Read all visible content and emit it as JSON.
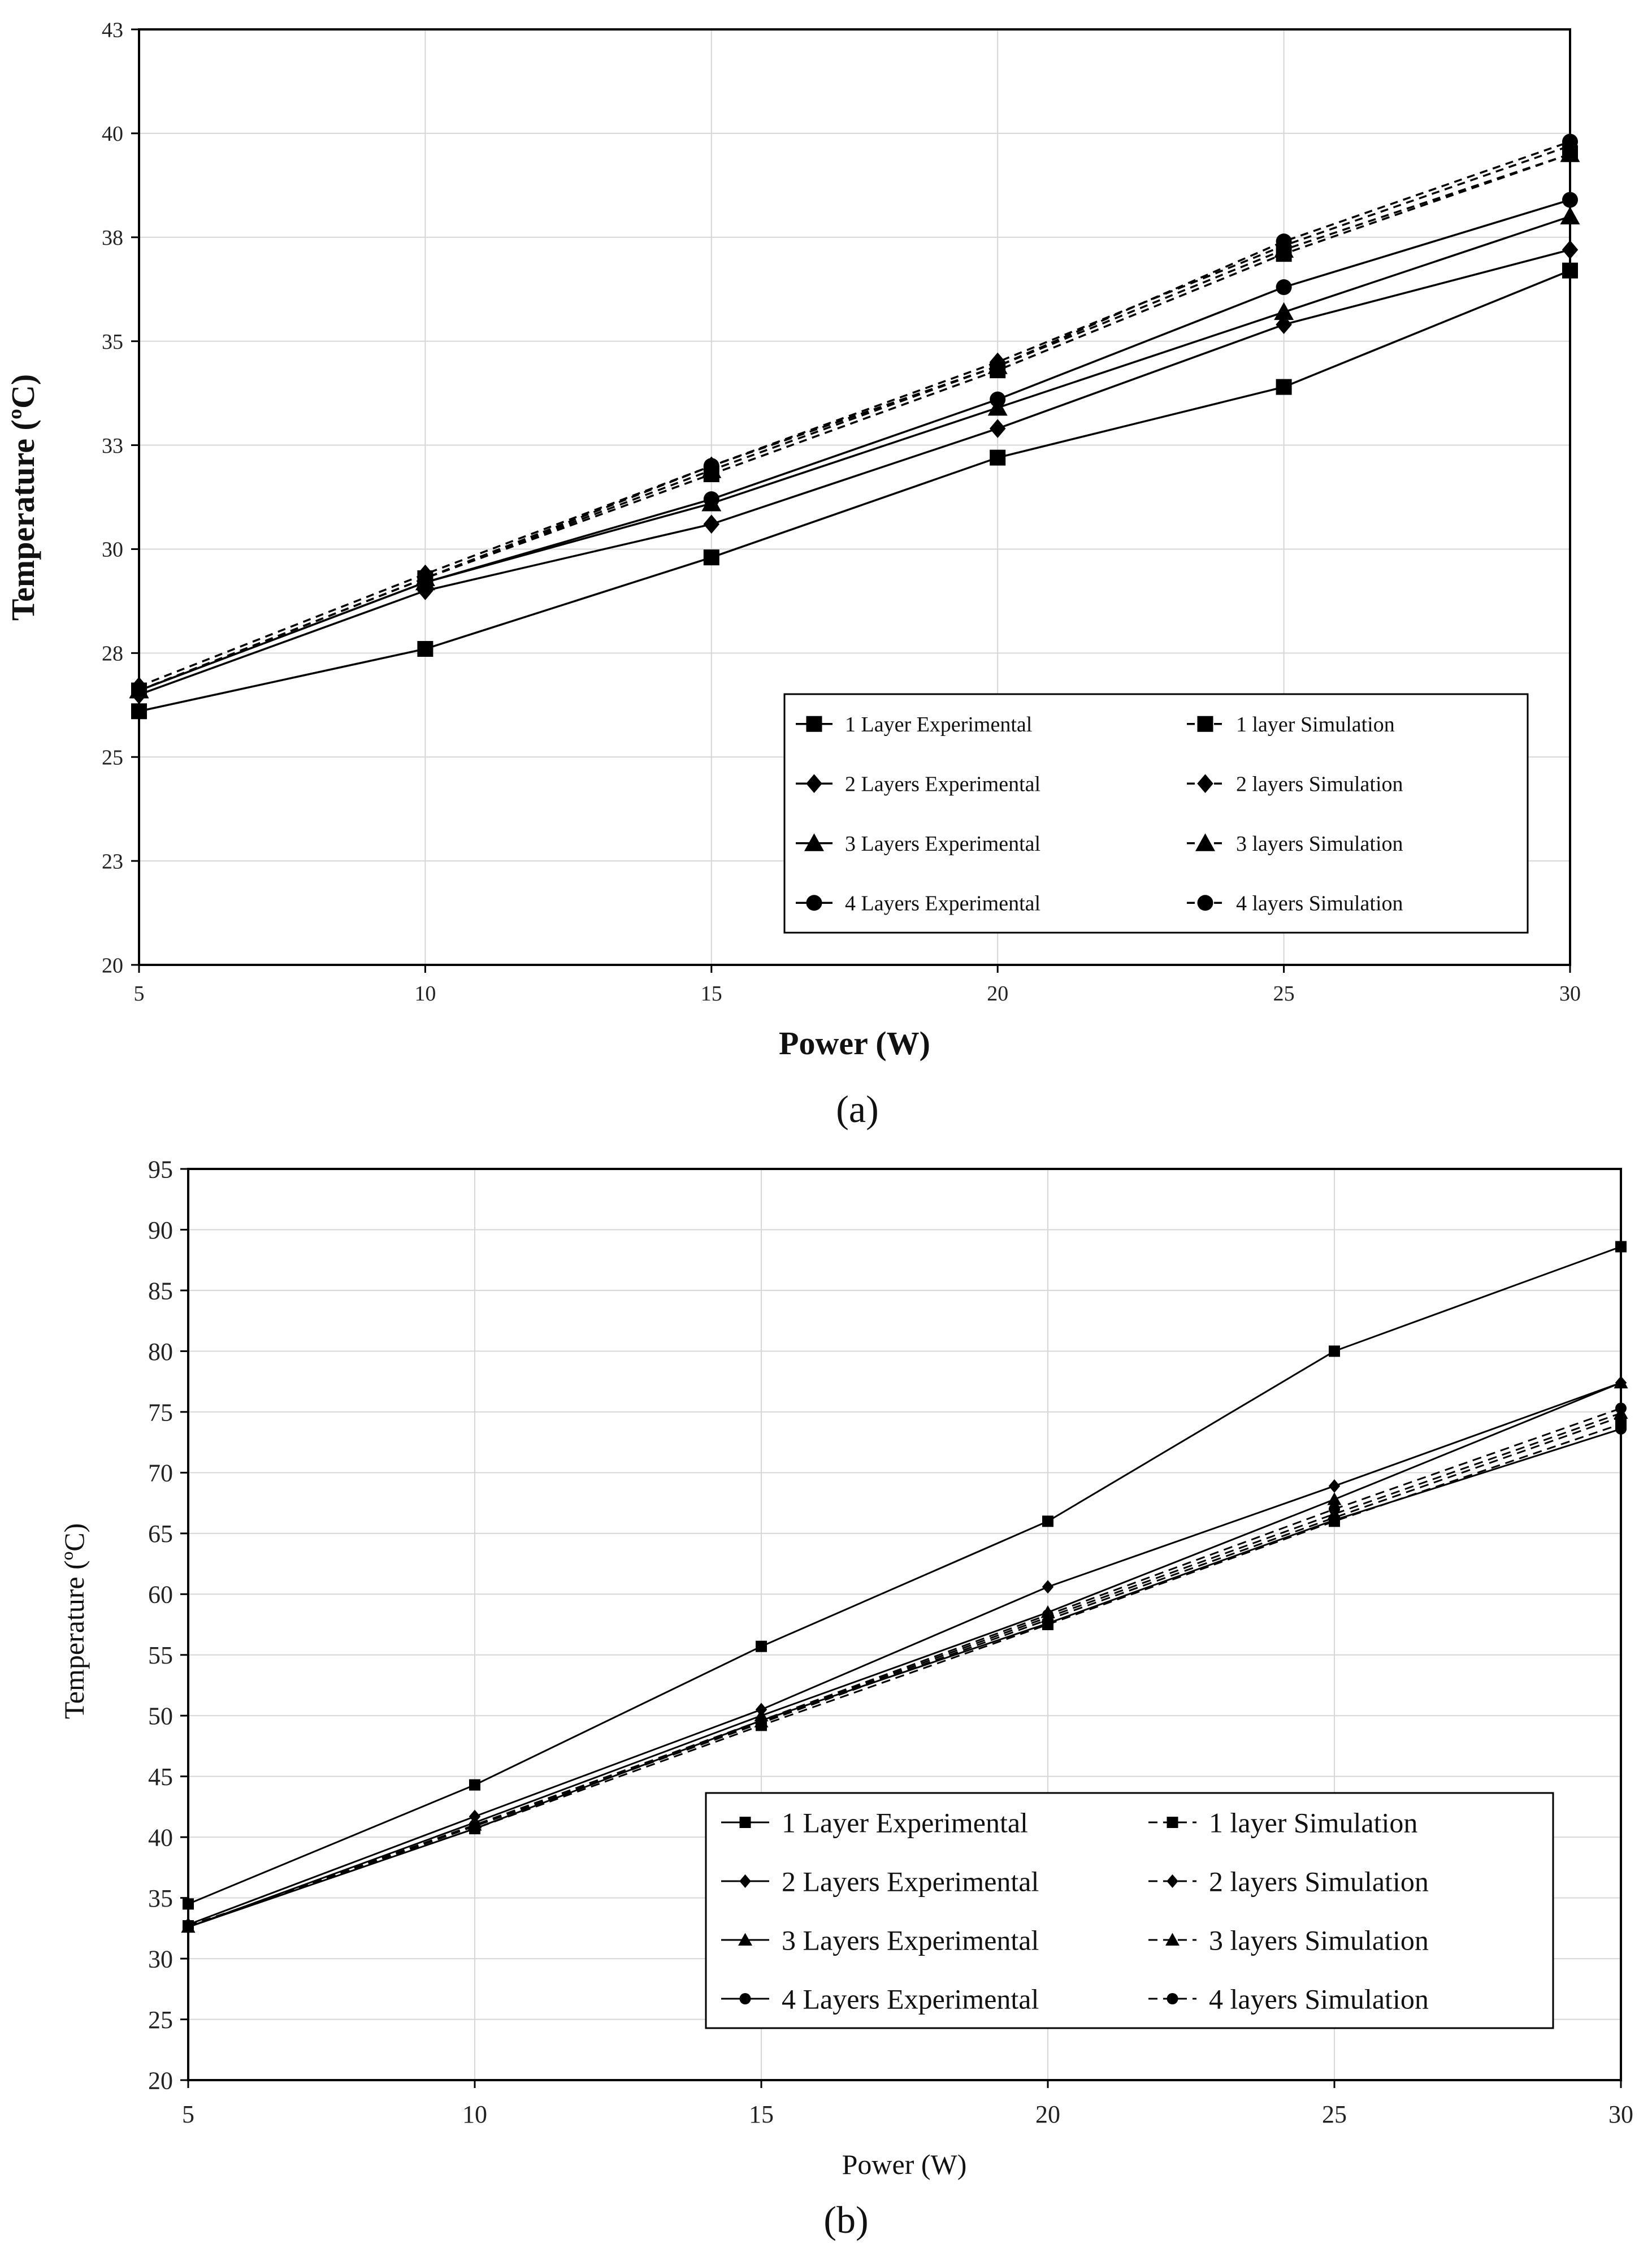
{
  "chart_data": [
    {
      "type": "line",
      "panel_label": "(a)",
      "xlabel": "Power (W)",
      "ylabel": "Temperature (ºC)",
      "x": [
        5,
        10,
        15,
        20,
        25,
        30
      ],
      "xlim": [
        5,
        30
      ],
      "ylim": [
        20,
        42.5
      ],
      "xticks": [
        "5",
        "10",
        "15",
        "20",
        "25",
        "30"
      ],
      "yticks": [
        {
          "value": 20,
          "label": "20"
        },
        {
          "value": 22.5,
          "label": "23"
        },
        {
          "value": 25,
          "label": "25"
        },
        {
          "value": 27.5,
          "label": "28"
        },
        {
          "value": 30,
          "label": "30"
        },
        {
          "value": 32.5,
          "label": "33"
        },
        {
          "value": 35,
          "label": "35"
        },
        {
          "value": 37.5,
          "label": "38"
        },
        {
          "value": 40,
          "label": "40"
        },
        {
          "value": 42.5,
          "label": "43"
        }
      ],
      "grid": true,
      "legend_position": "bottom-right",
      "series": [
        {
          "name": "1 Layer Experimental",
          "marker": "square",
          "dash": "solid",
          "values": [
            26.1,
            27.6,
            29.8,
            32.2,
            33.9,
            36.7
          ]
        },
        {
          "name": "1 layer Simulation",
          "marker": "square",
          "dash": "dashed",
          "values": [
            26.6,
            29.3,
            31.8,
            34.3,
            37.1,
            39.5
          ]
        },
        {
          "name": "2 Layers Experimental",
          "marker": "diamond",
          "dash": "solid",
          "values": [
            26.5,
            29.0,
            30.6,
            32.9,
            35.4,
            37.2
          ]
        },
        {
          "name": "2 layers Simulation",
          "marker": "diamond",
          "dash": "dashed",
          "values": [
            26.7,
            29.4,
            32.0,
            34.5,
            37.3,
            39.7
          ]
        },
        {
          "name": "3 Layers Experimental",
          "marker": "triangle",
          "dash": "solid",
          "values": [
            26.6,
            29.2,
            31.1,
            33.4,
            35.7,
            38.0
          ]
        },
        {
          "name": "3 layers Simulation",
          "marker": "triangle",
          "dash": "dashed",
          "values": [
            26.6,
            29.3,
            31.9,
            34.4,
            37.2,
            39.5
          ]
        },
        {
          "name": "4 Layers Experimental",
          "marker": "circle",
          "dash": "solid",
          "values": [
            26.6,
            29.2,
            31.2,
            33.6,
            36.3,
            38.4
          ]
        },
        {
          "name": "4 layers Simulation",
          "marker": "circle",
          "dash": "dashed",
          "values": [
            26.6,
            29.3,
            32.0,
            34.4,
            37.4,
            39.8
          ]
        }
      ]
    },
    {
      "type": "line",
      "panel_label": "(b)",
      "xlabel": "Power (W)",
      "ylabel": "Temperature (ºC)",
      "x": [
        5,
        10,
        15,
        20,
        25,
        30
      ],
      "xlim": [
        5,
        30
      ],
      "ylim": [
        20,
        95
      ],
      "xticks": [
        "5",
        "10",
        "15",
        "20",
        "25",
        "30"
      ],
      "yticks": [
        {
          "value": 20,
          "label": "20"
        },
        {
          "value": 25,
          "label": "25"
        },
        {
          "value": 30,
          "label": "30"
        },
        {
          "value": 35,
          "label": "35"
        },
        {
          "value": 40,
          "label": "40"
        },
        {
          "value": 45,
          "label": "45"
        },
        {
          "value": 50,
          "label": "50"
        },
        {
          "value": 55,
          "label": "55"
        },
        {
          "value": 60,
          "label": "60"
        },
        {
          "value": 65,
          "label": "65"
        },
        {
          "value": 70,
          "label": "70"
        },
        {
          "value": 75,
          "label": "75"
        },
        {
          "value": 80,
          "label": "80"
        },
        {
          "value": 85,
          "label": "85"
        },
        {
          "value": 90,
          "label": "90"
        },
        {
          "value": 95,
          "label": "95"
        }
      ],
      "grid": true,
      "legend_position": "bottom-right",
      "series": [
        {
          "name": "1 Layer Experimental",
          "marker": "square",
          "dash": "solid",
          "values": [
            34.5,
            44.3,
            55.7,
            66.0,
            80.0,
            88.6
          ]
        },
        {
          "name": "1 layer Simulation",
          "marker": "square",
          "dash": "dashed",
          "values": [
            32.7,
            40.7,
            49.2,
            57.5,
            66.0,
            74.0
          ]
        },
        {
          "name": "2 Layers Experimental",
          "marker": "diamond",
          "dash": "solid",
          "values": [
            32.8,
            41.7,
            50.5,
            60.6,
            68.9,
            77.4
          ]
        },
        {
          "name": "2 layers Simulation",
          "marker": "diamond",
          "dash": "dashed",
          "values": [
            32.6,
            40.9,
            49.4,
            57.9,
            66.3,
            74.6
          ]
        },
        {
          "name": "3 Layers Experimental",
          "marker": "triangle",
          "dash": "solid",
          "values": [
            32.6,
            41.2,
            50.0,
            58.5,
            67.8,
            77.4
          ]
        },
        {
          "name": "3 layers Simulation",
          "marker": "triangle",
          "dash": "dashed",
          "values": [
            32.6,
            41.0,
            49.5,
            58.1,
            66.6,
            74.9
          ]
        },
        {
          "name": "4 Layers Experimental",
          "marker": "circle",
          "dash": "solid",
          "values": [
            32.6,
            40.7,
            49.6,
            57.6,
            66.1,
            73.6
          ]
        },
        {
          "name": "4 layers Simulation",
          "marker": "circle",
          "dash": "dashed",
          "values": [
            32.6,
            41.0,
            49.6,
            58.3,
            67.0,
            75.3
          ]
        }
      ]
    }
  ]
}
